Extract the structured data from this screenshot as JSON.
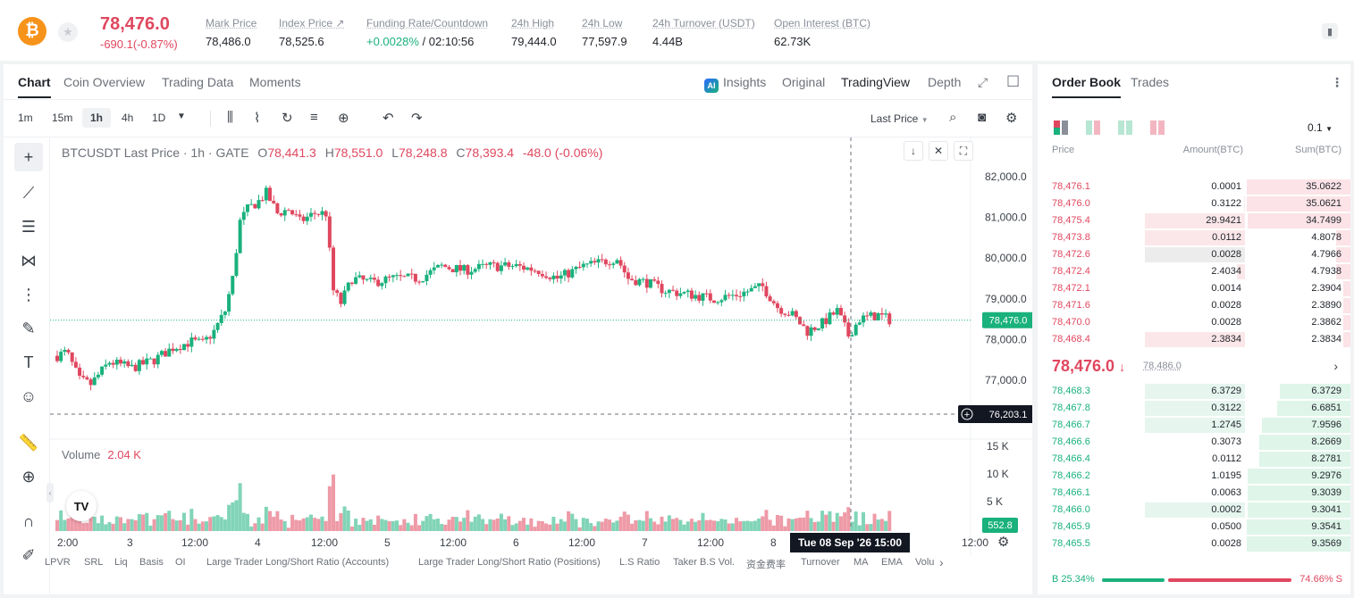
{
  "header": {
    "coin_symbol": "₿",
    "price": "78,476.0",
    "change": "-690.1(-0.87%)",
    "stats": [
      {
        "label": "Mark Price",
        "value": "78,486.0"
      },
      {
        "label": "Index Price ↗",
        "value": "78,525.6"
      },
      {
        "label": "Funding Rate/Countdown",
        "value_green": "+0.0028%",
        "value": " / 02:10:56"
      },
      {
        "label": "24h High",
        "value": "79,444.0"
      },
      {
        "label": "24h Low",
        "value": "77,597.9"
      },
      {
        "label": "24h Turnover (USDT)",
        "value": "4.44B"
      },
      {
        "label": "Open Interest (BTC)",
        "value": "62.73K"
      }
    ]
  },
  "chart_panel": {
    "tabs": [
      "Chart",
      "Coin Overview",
      "Trading Data",
      "Moments"
    ],
    "right_tabs": [
      "Insights",
      "Original",
      "TradingView",
      "Depth"
    ],
    "intervals": [
      "1m",
      "15m",
      "1h",
      "4h",
      "1D"
    ],
    "active_interval": "1h",
    "price_type": "Last Price",
    "legend": {
      "symbol": "BTCUSDT Last Price · 1h · GATE",
      "o": "78,441.3",
      "h": "78,551.0",
      "l": "78,248.8",
      "c": "78,393.4",
      "chg": "-48.0 (-0.06%)"
    },
    "volume_legend": {
      "label": "Volume",
      "value": "2.04 K"
    },
    "price_axis": [
      "82,000.0",
      "81,000.0",
      "80,000.0",
      "79,000.0",
      "78,000.0",
      "77,000.0"
    ],
    "volume_axis": [
      "15 K",
      "10 K",
      "5 K"
    ],
    "last_price_tag": "78,476.0",
    "crosshair_price_tag": "76,203.1",
    "volume_tag": "552.8",
    "time_axis": [
      "2:00",
      "3",
      "12:00",
      "4",
      "12:00",
      "5",
      "12:00",
      "6",
      "12:00",
      "7",
      "12:00",
      "8",
      "12:00"
    ],
    "crosshair_time": "Tue 08 Sep '26   15:00",
    "indicators": [
      "LPVR",
      "SRL",
      "Liq",
      "Basis",
      "OI",
      "Large Trader Long/Short Ratio (Accounts)",
      "Large Trader Long/Short Ratio (Positions)",
      "L.S Ratio",
      "Taker B.S Vol.",
      "资金费率",
      "Turnover",
      "MA",
      "EMA",
      "Volu"
    ]
  },
  "chart_data": {
    "type": "candlestick",
    "x_labels": [
      "2:00",
      "3",
      "12:00",
      "4",
      "12:00",
      "5",
      "12:00",
      "6",
      "12:00",
      "7",
      "12:00",
      "8",
      "12:00"
    ],
    "ylim": [
      76000,
      82500
    ],
    "open_approx": 77600,
    "last": 78476.0,
    "high_approx": 82200,
    "low_approx": 76600
  },
  "orderbook": {
    "tabs": [
      "Order Book",
      "Trades"
    ],
    "tick": "0.1",
    "headers": {
      "price": "Price",
      "amount": "Amount(BTC)",
      "sum": "Sum(BTC)"
    },
    "asks": [
      {
        "price": "78,476.1",
        "amount": "0.0001",
        "sum": "35.0622",
        "amt_pct": 0,
        "sum_pct": 100
      },
      {
        "price": "78,476.0",
        "amount": "0.3122",
        "sum": "35.0621",
        "amt_pct": 1,
        "sum_pct": 100
      },
      {
        "price": "78,475.4",
        "amount": "29.9421",
        "sum": "34.7499",
        "amt_pct": 100,
        "sum_pct": 99
      },
      {
        "price": "78,473.8",
        "amount": "0.0112",
        "sum": "4.8078",
        "amt_pct": 100,
        "sum_pct": 14
      },
      {
        "price": "78,472.6",
        "amount": "0.0028",
        "sum": "4.7966",
        "amt_pct": 100,
        "sum_pct": 14
      },
      {
        "price": "78,472.4",
        "amount": "2.4034",
        "sum": "4.7938",
        "amt_pct": 8,
        "sum_pct": 14
      },
      {
        "price": "78,472.1",
        "amount": "0.0014",
        "sum": "2.3904",
        "amt_pct": 0,
        "sum_pct": 7
      },
      {
        "price": "78,471.6",
        "amount": "0.0028",
        "sum": "2.3890",
        "amt_pct": 0,
        "sum_pct": 7
      },
      {
        "price": "78,470.0",
        "amount": "0.0028",
        "sum": "2.3862",
        "amt_pct": 0,
        "sum_pct": 7
      },
      {
        "price": "78,468.4",
        "amount": "2.3834",
        "sum": "2.3834",
        "amt_pct": 100,
        "sum_pct": 7
      }
    ],
    "mid_price": "78,476.0",
    "mid_arrow": "↓",
    "mark_price": "78,486.0",
    "bids": [
      {
        "price": "78,468.3",
        "amount": "6.3729",
        "sum": "6.3729",
        "amt_pct": 100,
        "sum_pct": 68
      },
      {
        "price": "78,467.8",
        "amount": "0.3122",
        "sum": "6.6851",
        "amt_pct": 100,
        "sum_pct": 71
      },
      {
        "price": "78,466.7",
        "amount": "1.2745",
        "sum": "7.9596",
        "amt_pct": 100,
        "sum_pct": 85
      },
      {
        "price": "78,466.6",
        "amount": "0.3073",
        "sum": "8.2669",
        "amt_pct": 0,
        "sum_pct": 88
      },
      {
        "price": "78,466.4",
        "amount": "0.0112",
        "sum": "8.2781",
        "amt_pct": 0,
        "sum_pct": 88
      },
      {
        "price": "78,466.2",
        "amount": "1.0195",
        "sum": "9.2976",
        "amt_pct": 0,
        "sum_pct": 99
      },
      {
        "price": "78,466.1",
        "amount": "0.0063",
        "sum": "9.3039",
        "amt_pct": 0,
        "sum_pct": 99
      },
      {
        "price": "78,466.0",
        "amount": "0.0002",
        "sum": "9.3041",
        "amt_pct": 100,
        "sum_pct": 99
      },
      {
        "price": "78,465.9",
        "amount": "0.0500",
        "sum": "9.3541",
        "amt_pct": 0,
        "sum_pct": 100
      },
      {
        "price": "78,465.5",
        "amount": "0.0028",
        "sum": "9.3569",
        "amt_pct": 0,
        "sum_pct": 100
      }
    ],
    "buy_ratio": "B 25.34%",
    "sell_ratio": "74.66% S"
  },
  "colors": {
    "up": "#19b17c",
    "down": "#e0475f",
    "accent": "#f7931a"
  }
}
